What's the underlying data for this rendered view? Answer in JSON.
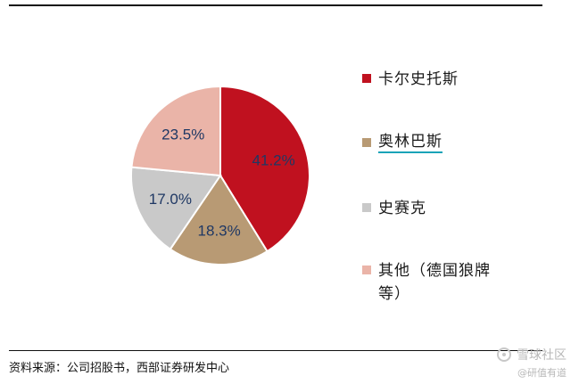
{
  "chart_data": {
    "type": "pie",
    "slices": [
      {
        "name": "卡尔史托斯",
        "value": 41.2,
        "label": "41.2%",
        "color": "#c0111f"
      },
      {
        "name": "奥林巴斯",
        "value": 18.3,
        "label": "18.3%",
        "color": "#b89a74"
      },
      {
        "name": "史赛克",
        "value": 17.0,
        "label": "17.0%",
        "color": "#c9c9c9"
      },
      {
        "name": "其他（德国狼牌等）",
        "value": 23.5,
        "label": "23.5%",
        "color": "#eab4a8"
      }
    ],
    "start_angle_deg": 0,
    "direction": "clockwise",
    "legend_position": "right"
  },
  "legend": {
    "items": [
      {
        "label": "卡尔史托斯"
      },
      {
        "label": "奥林巴斯"
      },
      {
        "label": "史赛克"
      },
      {
        "label": "其他（德国狼牌等）"
      }
    ]
  },
  "source": "资料来源：公司招股书，西部证券研发中心",
  "watermark": {
    "line1": "雪球社区",
    "line2": "@研值有道"
  }
}
